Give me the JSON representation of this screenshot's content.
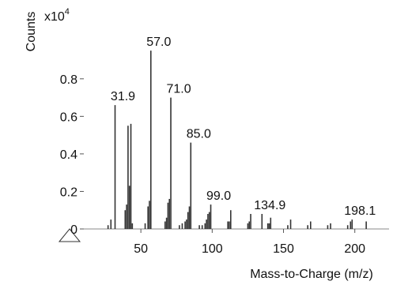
{
  "chart_data": {
    "type": "stem",
    "y_label": "Counts",
    "y_scale": "x10",
    "y_scale_exponent": "4",
    "x_label": "Mass-to-Charge (m/z)",
    "xlim": [
      10,
      224
    ],
    "ylim": [
      0,
      1.14
    ],
    "xticks": [
      50,
      100,
      150,
      200
    ],
    "yticks": [
      0,
      0.2,
      0.4,
      0.6,
      0.8
    ],
    "color": "#333333",
    "peaks": {
      "x": [
        27,
        29,
        39,
        40,
        41,
        42,
        43,
        44,
        53,
        55,
        56,
        67,
        68,
        69,
        70,
        77,
        79,
        81,
        82,
        83,
        84,
        91,
        93,
        95,
        96,
        97,
        98,
        111,
        112,
        113,
        125,
        126,
        127,
        139,
        140,
        141,
        153,
        155,
        167,
        169,
        181,
        183,
        195,
        197,
        208
      ],
      "values": [
        0.02,
        0.05,
        0.1,
        0.13,
        0.55,
        0.23,
        0.56,
        0.03,
        0.03,
        0.12,
        0.15,
        0.04,
        0.06,
        0.14,
        0.16,
        0.02,
        0.03,
        0.04,
        0.05,
        0.09,
        0.12,
        0.02,
        0.02,
        0.03,
        0.05,
        0.08,
        0.09,
        0.04,
        0.04,
        0.1,
        0.03,
        0.04,
        0.08,
        0.03,
        0.03,
        0.06,
        0.02,
        0.05,
        0.02,
        0.04,
        0.02,
        0.03,
        0.02,
        0.04,
        0.04
      ]
    },
    "labeled_peaks": {
      "x": [
        31.9,
        57.0,
        71.0,
        85.0,
        99.0,
        134.9,
        198.1
      ],
      "x_labels": [
        "31.9",
        "57.0",
        "71.0",
        "85.0",
        "99.0",
        "134.9",
        "198.1"
      ],
      "values": [
        0.66,
        0.95,
        0.7,
        0.46,
        0.13,
        0.08,
        0.05
      ]
    }
  }
}
